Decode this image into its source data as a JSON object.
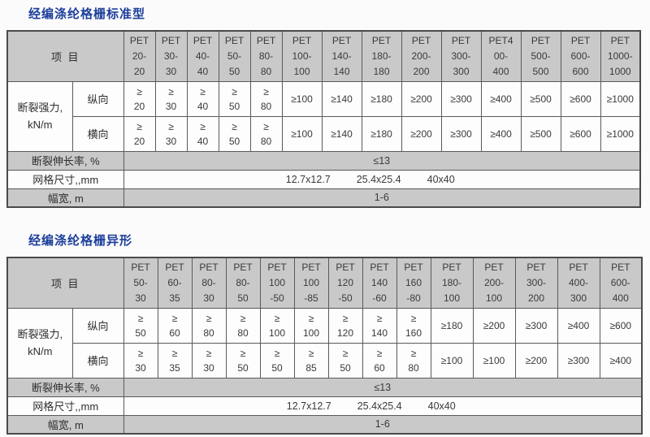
{
  "colors": {
    "title_blue": "#1d3f9b",
    "header_gray": "#c9c9c9",
    "border": "#5a5a5a",
    "cell_white": "#fdfdfd"
  },
  "tables": [
    {
      "name": "table-standard",
      "title": "经编涤纶格栅标准型",
      "item_header": "项  目",
      "narrow_count": 5,
      "columns": [
        "PET\n20-\n20",
        "PET\n30-\n30",
        "PET\n40-\n40",
        "PET\n50-\n50",
        "PET\n80-\n80",
        "PET\n100-\n100",
        "PET\n140-\n140",
        "PET\n180-\n180",
        "PET\n200-\n200",
        "PET\n300-\n300",
        "PET4\n00-\n400",
        "PET\n500-\n500",
        "PET\n600-\n600",
        "PET\n1000-\n1000"
      ],
      "strength_label": "断裂强力,\nkN/m",
      "strength_rows": [
        {
          "label": "纵向",
          "values": [
            "≥\n20",
            "≥\n30",
            "≥\n40",
            "≥\n50",
            "≥\n80",
            "≥100",
            "≥140",
            "≥180",
            "≥200",
            "≥300",
            "≥400",
            "≥500",
            "≥600",
            "≥1000"
          ]
        },
        {
          "label": "横向",
          "values": [
            "≥\n20",
            "≥\n30",
            "≥\n40",
            "≥\n50",
            "≥\n80",
            "≥100",
            "≥140",
            "≥180",
            "≥200",
            "≥300",
            "≥400",
            "≥500",
            "≥600",
            "≥1000"
          ]
        }
      ],
      "footer_rows": [
        {
          "label": "断裂伸长率, %",
          "value": "≤13",
          "shade": true
        },
        {
          "label": "网格尺寸,,mm",
          "values": [
            "12.7x12.7",
            "25.4x25.4",
            "40x40"
          ],
          "shade": false
        },
        {
          "label": "幅宽, m",
          "value": "1-6",
          "shade": true
        }
      ]
    },
    {
      "name": "table-special",
      "title": "经编涤纶格栅异形",
      "item_header": "项  目",
      "narrow_count": 9,
      "columns": [
        "PET\n50-\n30",
        "PET\n60-\n35",
        "PET\n80-\n30",
        "PET\n80-\n50",
        "PET\n100\n-50",
        "PET\n100\n-85",
        "PET\n120\n-50",
        "PET\n140\n-60",
        "PET\n160\n-80",
        "PET\n180-\n100",
        "PET\n200-\n100",
        "PET\n300-\n200",
        "PET\n400-\n300",
        "PET\n600-\n400"
      ],
      "strength_label": "断裂强力,\nkN/m",
      "strength_rows": [
        {
          "label": "纵向",
          "values": [
            "≥\n50",
            "≥\n60",
            "≥\n80",
            "≥\n80",
            "≥\n100",
            "≥\n100",
            "≥\n120",
            "≥\n140",
            "≥\n160",
            "≥180",
            "≥200",
            "≥300",
            "≥400",
            "≥600"
          ]
        },
        {
          "label": "横向",
          "values": [
            "≥\n30",
            "≥\n35",
            "≥\n30",
            "≥\n50",
            "≥\n50",
            "≥\n85",
            "≥\n50",
            "≥\n60",
            "≥\n80",
            "≥100",
            "≥100",
            "≥200",
            "≥300",
            "≥400"
          ]
        }
      ],
      "footer_rows": [
        {
          "label": "断裂伸长率, %",
          "value": "≤13",
          "shade": true
        },
        {
          "label": "网格尺寸,,mm",
          "values": [
            "12.7x12.7",
            "25.4x25.4",
            "40x40"
          ],
          "shade": false
        },
        {
          "label": "幅宽, m",
          "value": "1-6",
          "shade": true
        }
      ]
    }
  ]
}
